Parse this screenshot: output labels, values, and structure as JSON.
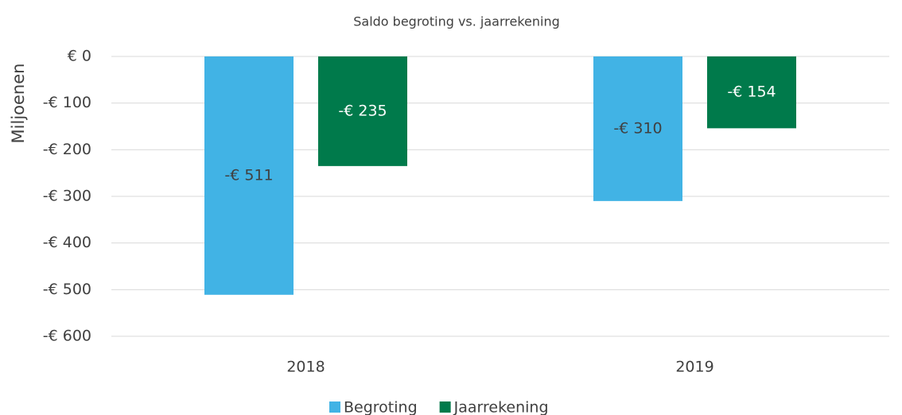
{
  "chart_data": {
    "type": "bar",
    "title": "Saldo begroting vs. jaarrekening",
    "y_label": "Miljoenen",
    "categories": [
      "2018",
      "2019"
    ],
    "series": [
      {
        "name": "Begroting",
        "color": "#41b3e5",
        "values": [
          -511,
          -310
        ],
        "value_labels": [
          "-€ 511",
          "-€ 310"
        ]
      },
      {
        "name": "Jaarrekening",
        "color": "#007a4b",
        "values": [
          -235,
          -154
        ],
        "value_labels": [
          "-€ 235",
          "-€ 154"
        ]
      }
    ],
    "ylim": [
      -600,
      0
    ],
    "yticks": [
      {
        "value": 0,
        "label": "€ 0"
      },
      {
        "value": -100,
        "label": "-€ 100"
      },
      {
        "value": -200,
        "label": "-€ 200"
      },
      {
        "value": -300,
        "label": "-€ 300"
      },
      {
        "value": -400,
        "label": "-€ 400"
      },
      {
        "value": -500,
        "label": "-€ 500"
      },
      {
        "value": -600,
        "label": "-€ 600"
      }
    ],
    "grid": true,
    "legend": "bottom"
  }
}
